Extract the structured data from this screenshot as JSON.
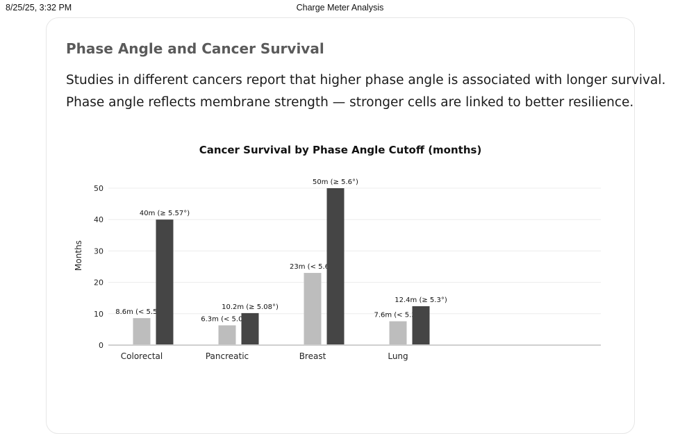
{
  "print_header": {
    "date": "8/25/25, 3:32 PM",
    "title": "Charge Meter Analysis"
  },
  "card": {
    "title": "Phase Angle and Cancer Survival",
    "lines": [
      "Studies in different cancers report that higher phase angle is associated with longer survival.",
      "Phase angle reflects membrane strength — stronger cells are linked to better resilience."
    ]
  },
  "chart_data": {
    "type": "bar",
    "title": "Cancer Survival by Phase Angle Cutoff (months)",
    "xlabel": "",
    "ylabel": "Months",
    "ylim": [
      0,
      50
    ],
    "yticks": [
      0,
      10,
      20,
      30,
      40,
      50
    ],
    "grid": true,
    "categories": [
      "Colorectal",
      "Pancreatic",
      "Breast",
      "Lung"
    ],
    "series": [
      {
        "color": "#bdbdbd",
        "values": [
          8.6,
          6.3,
          23,
          7.6
        ],
        "labels": [
          "8.6m (< 5.57°)",
          "6.3m (< 5.08°)",
          "23m (< 5.6°)",
          "7.6m (< 5.3°)"
        ]
      },
      {
        "color": "#454545",
        "values": [
          40,
          10.2,
          50,
          12.4
        ],
        "labels": [
          "40m (≥ 5.57°)",
          "10.2m (≥ 5.08°)",
          "50m (≥ 5.6°)",
          "12.4m (≥ 5.3°)"
        ]
      }
    ]
  }
}
